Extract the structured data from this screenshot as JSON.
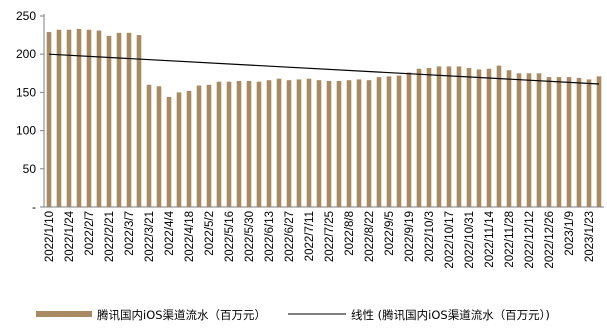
{
  "chart_data": {
    "type": "bar",
    "title": "",
    "xlabel": "",
    "ylabel": "",
    "ylim": [
      0,
      250
    ],
    "yticks": [
      {
        "value": 0,
        "label": "-"
      },
      {
        "value": 50,
        "label": "50"
      },
      {
        "value": 100,
        "label": "100"
      },
      {
        "value": 150,
        "label": "150"
      },
      {
        "value": 200,
        "label": "200"
      },
      {
        "value": 250,
        "label": "250"
      }
    ],
    "grid": false,
    "legend_position": "bottom",
    "colors": {
      "bar": "#a98b63",
      "trend": "#000000",
      "axis": "#7f7f7f"
    },
    "x_tick_labels": [
      "2022/1/10",
      "2022/1/24",
      "2022/2/7",
      "2022/2/21",
      "2022/3/7",
      "2022/3/21",
      "2022/4/4",
      "2022/4/18",
      "2022/5/2",
      "2022/5/16",
      "2022/5/30",
      "2022/6/13",
      "2022/6/27",
      "2022/7/11",
      "2022/7/25",
      "2022/8/8",
      "2022/8/22",
      "2022/9/5",
      "2022/9/19",
      "2022/10/3",
      "2022/10/17",
      "2022/10/31",
      "2022/11/14",
      "2022/11/28",
      "2022/12/12",
      "2022/12/26",
      "2023/1/9",
      "2023/1/23"
    ],
    "series": [
      {
        "name": "腾讯国内iOS渠道流水（百万元）",
        "type": "bar",
        "values": [
          229,
          232,
          232,
          233,
          232,
          231,
          224,
          228,
          228,
          225,
          160,
          158,
          144,
          150,
          152,
          159,
          160,
          164,
          164,
          165,
          165,
          164,
          166,
          168,
          166,
          167,
          168,
          166,
          165,
          165,
          166,
          167,
          166,
          170,
          171,
          172,
          176,
          181,
          182,
          184,
          184,
          184,
          182,
          180,
          181,
          185,
          179,
          175,
          175,
          175,
          170,
          170,
          170,
          169,
          167,
          171
        ]
      },
      {
        "name": "线性 (腾讯国内iOS渠道流水（百万元）)",
        "type": "line",
        "start": 200,
        "end": 161
      }
    ]
  }
}
